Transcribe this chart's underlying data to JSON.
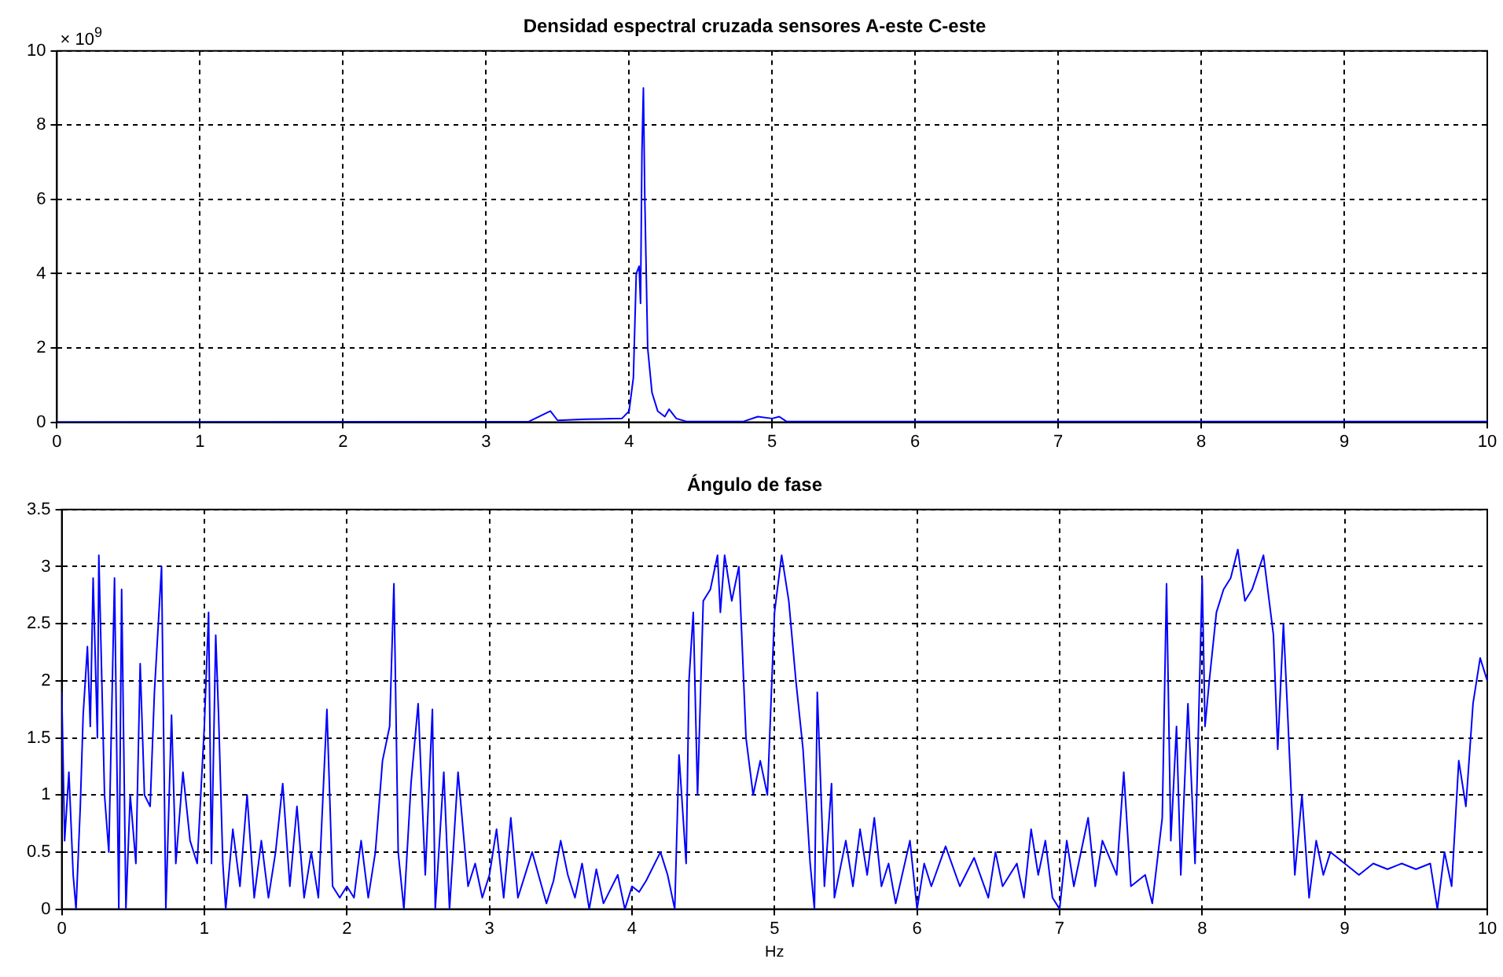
{
  "chart_data": [
    {
      "type": "line",
      "title": "Densidad espectral cruzada sensores A-este C-este",
      "annotations": [
        "× 10$^{9}$"
      ],
      "xlim": [
        0,
        10
      ],
      "xticks": [
        0,
        1,
        2,
        3,
        4,
        5,
        6,
        7,
        8,
        9,
        10
      ],
      "ylim": [
        0,
        10
      ],
      "yticks": [
        0,
        2,
        4,
        6,
        8,
        10
      ],
      "grid": true,
      "legend": false,
      "marker": "none",
      "line_style": "solid",
      "series": [
        {
          "color": "#0000ff",
          "x": [
            0,
            3.3,
            3.45,
            3.5,
            3.7,
            3.95,
            4.0,
            4.03,
            4.05,
            4.07,
            4.08,
            4.09,
            4.1,
            4.11,
            4.13,
            4.16,
            4.2,
            4.25,
            4.28,
            4.33,
            4.4,
            4.8,
            4.9,
            5.0,
            5.05,
            5.1,
            10
          ],
          "values": [
            0,
            0.02,
            0.3,
            0.05,
            0.08,
            0.1,
            0.3,
            1.2,
            4.0,
            4.2,
            3.2,
            7.3,
            9.0,
            6,
            2,
            0.8,
            0.3,
            0.15,
            0.35,
            0.1,
            0.02,
            0.02,
            0.15,
            0.1,
            0.15,
            0.02,
            0.02
          ]
        }
      ]
    },
    {
      "type": "line",
      "title": "Ángulo de fase",
      "xlabel": "Hz",
      "xlim": [
        0,
        10
      ],
      "xticks": [
        0,
        1,
        2,
        3,
        4,
        5,
        6,
        7,
        8,
        9,
        10
      ],
      "ylim": [
        0,
        3.5
      ],
      "yticks": [
        0,
        0.5,
        1,
        1.5,
        2,
        2.5,
        3,
        3.5
      ],
      "grid": true,
      "legend": false,
      "marker": "none",
      "line_style": "solid",
      "series": [
        {
          "color": "#0000ff",
          "x": [
            0,
            0.02,
            0.05,
            0.08,
            0.1,
            0.13,
            0.15,
            0.18,
            0.2,
            0.22,
            0.25,
            0.26,
            0.3,
            0.33,
            0.37,
            0.4,
            0.42,
            0.45,
            0.48,
            0.52,
            0.55,
            0.58,
            0.62,
            0.65,
            0.7,
            0.73,
            0.77,
            0.8,
            0.85,
            0.9,
            0.95,
            1.0,
            1.03,
            1.05,
            1.08,
            1.1,
            1.13,
            1.15,
            1.2,
            1.25,
            1.3,
            1.35,
            1.4,
            1.45,
            1.5,
            1.55,
            1.6,
            1.65,
            1.7,
            1.75,
            1.8,
            1.86,
            1.9,
            1.95,
            2.0,
            2.05,
            2.1,
            2.15,
            2.2,
            2.25,
            2.3,
            2.33,
            2.36,
            2.4,
            2.45,
            2.5,
            2.55,
            2.6,
            2.62,
            2.68,
            2.72,
            2.78,
            2.85,
            2.9,
            2.95,
            3.0,
            3.05,
            3.1,
            3.15,
            3.2,
            3.3,
            3.4,
            3.45,
            3.5,
            3.55,
            3.6,
            3.65,
            3.7,
            3.75,
            3.8,
            3.9,
            3.95,
            4.0,
            4.05,
            4.1,
            4.2,
            4.25,
            4.3,
            4.33,
            4.38,
            4.4,
            4.43,
            4.46,
            4.5,
            4.55,
            4.6,
            4.62,
            4.65,
            4.7,
            4.75,
            4.8,
            4.82,
            4.85,
            4.9,
            4.95,
            5.0,
            5.05,
            5.1,
            5.15,
            5.2,
            5.25,
            5.28,
            5.3,
            5.35,
            5.4,
            5.42,
            5.5,
            5.55,
            5.6,
            5.65,
            5.7,
            5.75,
            5.8,
            5.85,
            5.95,
            6.0,
            6.05,
            6.1,
            6.2,
            6.3,
            6.4,
            6.5,
            6.55,
            6.6,
            6.7,
            6.75,
            6.8,
            6.85,
            6.9,
            6.95,
            7.0,
            7.05,
            7.1,
            7.2,
            7.25,
            7.3,
            7.4,
            7.45,
            7.5,
            7.6,
            7.65,
            7.72,
            7.75,
            7.78,
            7.82,
            7.85,
            7.9,
            7.95,
            8.0,
            8.02,
            8.05,
            8.1,
            8.15,
            8.2,
            8.25,
            8.3,
            8.35,
            8.43,
            8.5,
            8.53,
            8.57,
            8.6,
            8.65,
            8.7,
            8.75,
            8.8,
            8.85,
            8.9,
            9.0,
            9.1,
            9.2,
            9.3,
            9.4,
            9.5,
            9.6,
            9.65,
            9.7,
            9.75,
            9.8,
            9.85,
            9.9,
            9.95,
            10.0
          ],
          "values": [
            1.9,
            0.6,
            1.2,
            0.3,
            0.0,
            0.9,
            1.7,
            2.3,
            1.6,
            2.9,
            1.5,
            3.1,
            1.0,
            0.5,
            2.9,
            0.0,
            2.8,
            0.0,
            1.0,
            0.4,
            2.15,
            1.0,
            0.9,
            1.9,
            3.0,
            0.0,
            1.7,
            0.4,
            1.2,
            0.6,
            0.4,
            1.6,
            2.6,
            0.4,
            2.4,
            1.7,
            0.4,
            0.0,
            0.7,
            0.2,
            1.0,
            0.1,
            0.6,
            0.1,
            0.5,
            1.1,
            0.2,
            0.9,
            0.1,
            0.5,
            0.1,
            1.75,
            0.2,
            0.1,
            0.2,
            0.1,
            0.6,
            0.1,
            0.5,
            1.3,
            1.6,
            2.85,
            0.5,
            0.0,
            1.1,
            1.8,
            0.3,
            1.75,
            0.0,
            1.2,
            0.0,
            1.2,
            0.2,
            0.4,
            0.1,
            0.3,
            0.7,
            0.1,
            0.8,
            0.1,
            0.5,
            0.05,
            0.25,
            0.6,
            0.3,
            0.1,
            0.4,
            0.0,
            0.35,
            0.05,
            0.3,
            0.0,
            0.2,
            0.15,
            0.25,
            0.5,
            0.3,
            0.0,
            1.35,
            0.4,
            2.0,
            2.6,
            1.0,
            2.7,
            2.8,
            3.1,
            2.6,
            3.1,
            2.7,
            3.0,
            1.5,
            1.3,
            1.0,
            1.3,
            1.0,
            2.6,
            3.1,
            2.7,
            2.0,
            1.4,
            0.4,
            0.0,
            1.9,
            0.2,
            1.1,
            0.1,
            0.6,
            0.2,
            0.7,
            0.3,
            0.8,
            0.2,
            0.4,
            0.05,
            0.6,
            0.0,
            0.4,
            0.2,
            0.55,
            0.2,
            0.45,
            0.1,
            0.5,
            0.2,
            0.4,
            0.1,
            0.7,
            0.3,
            0.6,
            0.1,
            0.0,
            0.6,
            0.2,
            0.8,
            0.2,
            0.6,
            0.3,
            1.2,
            0.2,
            0.3,
            0.05,
            0.8,
            2.85,
            0.6,
            1.6,
            0.3,
            1.8,
            0.4,
            2.9,
            1.6,
            2.0,
            2.6,
            2.8,
            2.9,
            3.15,
            2.7,
            2.8,
            3.1,
            2.4,
            1.4,
            2.5,
            1.7,
            0.3,
            1.0,
            0.1,
            0.6,
            0.3,
            0.5,
            0.4,
            0.3,
            0.4,
            0.35,
            0.4,
            0.35,
            0.4,
            0.0,
            0.5,
            0.2,
            1.3,
            0.9,
            1.8,
            2.2,
            2.0
          ]
        }
      ]
    }
  ]
}
